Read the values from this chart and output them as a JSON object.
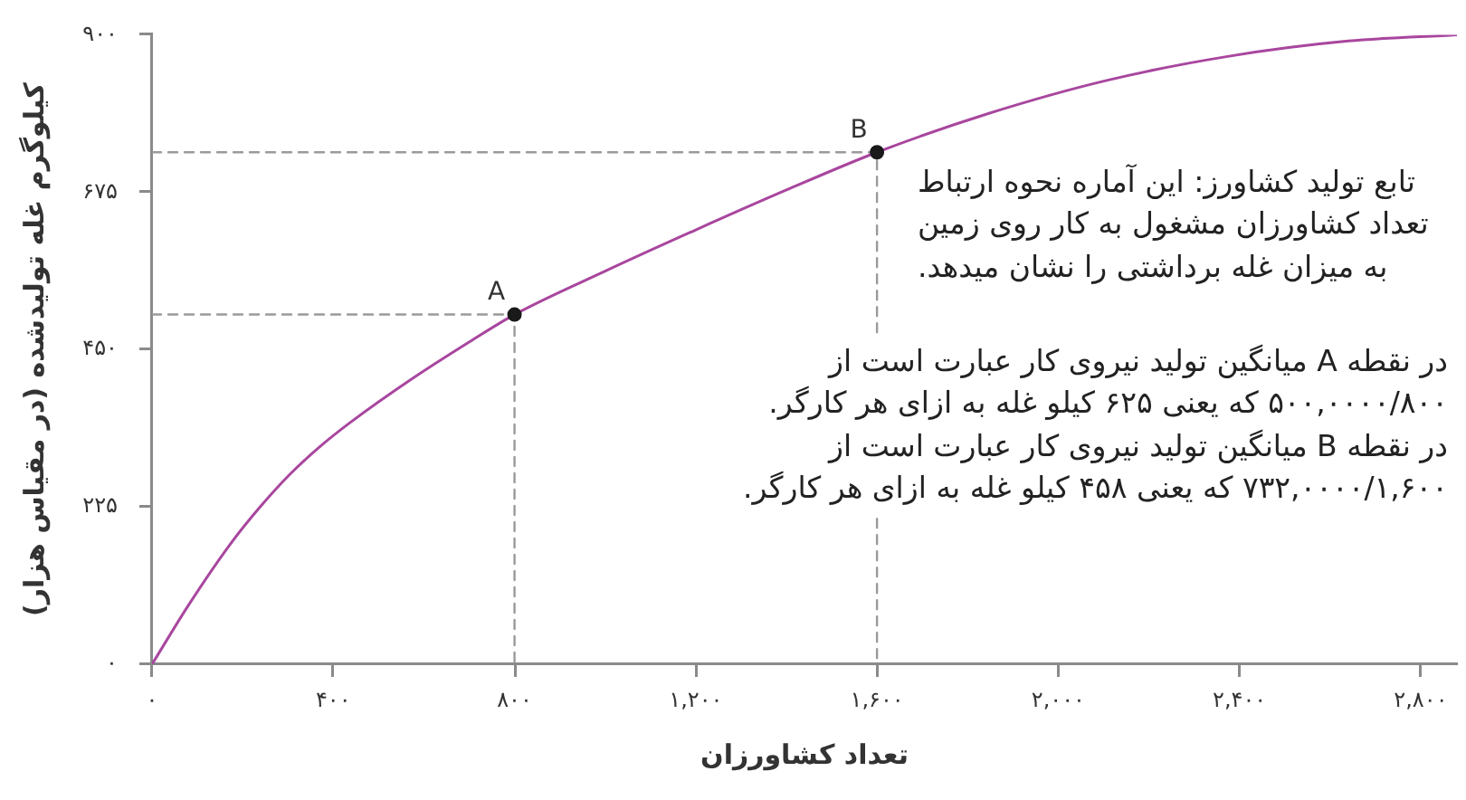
{
  "chart_data": {
    "type": "line",
    "xlabel": "تعداد کشاورزان",
    "ylabel": "کیلوگرم غله تولیدشده (در مقیاس هزار)",
    "x": [
      0,
      80,
      173,
      240,
      305,
      372,
      438,
      571,
      703,
      800,
      1000,
      1200,
      1400,
      1600,
      1844,
      2109,
      2374,
      2640,
      2880
    ],
    "series": [
      {
        "color": "#a8469e",
        "values": [
          0,
          84,
          172,
          226,
          272,
          312,
          346,
          407,
          462,
          500,
          562,
          621,
          678,
          732,
          787,
          835,
          869,
          891,
          900
        ]
      },
      {
        "type": "scatter",
        "color": "#1a1a1a",
        "marker": "circle",
        "x": [
          800,
          1600
        ],
        "values": [
          500,
          732
        ]
      },
      {
        "color": "#9a9a9a",
        "line_style": "dashed",
        "x": [
          0,
          800,
          800
        ],
        "values": [
          500,
          500,
          0
        ]
      },
      {
        "color": "#9a9a9a",
        "line_style": "dashed",
        "x": [
          0,
          1600,
          1600
        ],
        "values": [
          732,
          732,
          0
        ]
      }
    ],
    "marker": "none",
    "xlim": [
      0,
      2880
    ],
    "xticks": [
      {
        "value": 0,
        "label": "۰"
      },
      {
        "value": 400,
        "label": "۴۰۰"
      },
      {
        "value": 800,
        "label": "۸۰۰"
      },
      {
        "value": 1200,
        "label": "۱,۲۰۰"
      },
      {
        "value": 1600,
        "label": "۱,۶۰۰"
      },
      {
        "value": 2000,
        "label": "۲,۰۰۰"
      },
      {
        "value": 2400,
        "label": "۲,۴۰۰"
      },
      {
        "value": 2800,
        "label": "۲,۸۰۰"
      }
    ],
    "ylim": [
      0,
      900
    ],
    "yticks": [
      {
        "value": 0,
        "label": "۰"
      },
      {
        "value": 225,
        "label": "۲۲۵"
      },
      {
        "value": 450,
        "label": "۴۵۰"
      },
      {
        "value": 675,
        "label": "۶۷۵"
      },
      {
        "value": 900,
        "label": "۹۰۰"
      }
    ],
    "annotations": [
      {
        "text": "A",
        "x": 800,
        "y": 500
      },
      {
        "text": "B",
        "x": 1600,
        "y": 732
      },
      "تابع تولید کشاورز: این آماره نحوه ارتباط\nتعداد کشاورزان مشغول به کار روی زمین\nبه میزان غله برداشتی را نشان میدهد.",
      "در نقطه A میانگین تولید نیروی کار عبارت است از\n۵۰۰,۰۰۰۰/۸۰۰ که یعنی ۶۲۵ کیلو غله به ازای هر کارگر.\nدر نقطه B میانگین تولید نیروی کار عبارت است از\n۷۳۲,۰۰۰۰/۱,۶۰۰ که یعنی ۴۵۸ کیلو غله به ازای هر کارگر."
    ]
  }
}
